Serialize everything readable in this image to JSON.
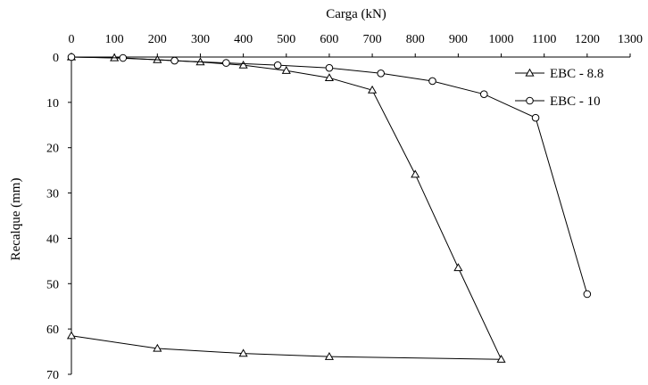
{
  "chart_data": {
    "type": "line",
    "title": "",
    "xlabel": "Carga (kN)",
    "ylabel": "Recalque (mm)",
    "xlim": [
      0,
      1300
    ],
    "ylim": [
      0,
      70
    ],
    "x_axis_position": "top",
    "y_axis_inverted": true,
    "grid": false,
    "legend_position": "top-right",
    "x_ticks": [
      0,
      100,
      200,
      300,
      400,
      500,
      600,
      700,
      800,
      900,
      1000,
      1100,
      1200,
      1300
    ],
    "y_ticks": [
      0,
      10,
      20,
      30,
      40,
      50,
      60,
      70
    ],
    "series": [
      {
        "name": "EBC - 8.8",
        "marker": "triangle-open",
        "color": "#000000",
        "x": [
          0,
          100,
          200,
          300,
          400,
          500,
          600,
          700,
          800,
          900,
          1000,
          600,
          400,
          200,
          0
        ],
        "y": [
          0,
          0.2,
          0.6,
          1.1,
          1.8,
          3.0,
          4.6,
          7.3,
          25.9,
          46.5,
          66.7,
          66.1,
          65.4,
          64.3,
          61.5
        ]
      },
      {
        "name": "EBC - 10",
        "marker": "circle-open",
        "color": "#000000",
        "x": [
          0,
          120,
          240,
          360,
          480,
          600,
          720,
          840,
          960,
          1080,
          1200
        ],
        "y": [
          0,
          0.2,
          0.8,
          1.3,
          1.8,
          2.4,
          3.6,
          5.3,
          8.2,
          13.4,
          52.3
        ]
      }
    ]
  }
}
